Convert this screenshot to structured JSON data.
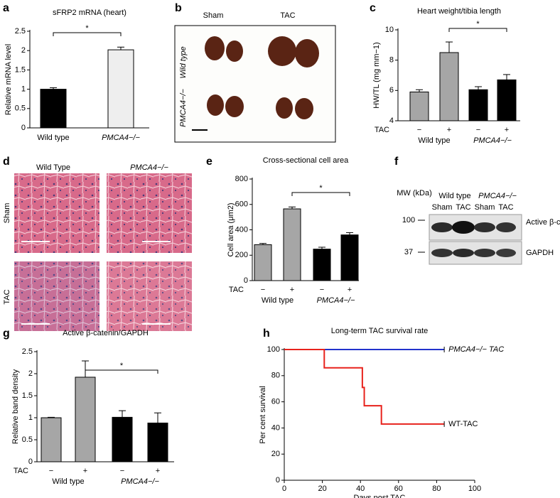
{
  "panel_labels": [
    "a",
    "b",
    "c",
    "d",
    "e",
    "f",
    "g",
    "h"
  ],
  "photo_b": {
    "columns": [
      "Sham",
      "TAC"
    ],
    "rows": [
      "Wild type",
      "PMCA4−/−"
    ]
  },
  "histology_d": {
    "columns": [
      "Wild Type",
      "PMCA4−/−"
    ],
    "rows": [
      "Sham",
      "TAC"
    ]
  },
  "blot_f": {
    "mw_label": "MW (kDa)",
    "groups": [
      "Wild type",
      "PMCA4−/−"
    ],
    "lanes": [
      "Sham",
      "TAC",
      "Sham",
      "TAC"
    ],
    "markers": [
      "100",
      "37"
    ],
    "bands": [
      "Active β-catenin",
      "GAPDH"
    ]
  },
  "chart_data": [
    {
      "type": "bar",
      "title": "sFRP2 mRNA (heart)",
      "y_label": "Relative mRNA level",
      "categories": [
        "Wild type",
        "PMCA4−/−"
      ],
      "values": [
        1.0,
        2.02
      ],
      "errors": [
        0.04,
        0.07
      ],
      "colors": [
        "#000000",
        "#eeeeee"
      ],
      "ylim": [
        0,
        2.5
      ],
      "yticks": [
        0,
        0.5,
        1,
        1.5,
        2,
        2.5
      ],
      "annotation": "*"
    },
    {
      "type": "bar",
      "title": "Heart weight/tibia length",
      "y_label": "HW/TL (mg mm−1)",
      "row_label": "TAC",
      "categories": [
        "−",
        "+",
        "−",
        "+"
      ],
      "groups": [
        "Wild type",
        "PMCA4−/−"
      ],
      "values": [
        5.9,
        8.5,
        6.05,
        6.7
      ],
      "errors": [
        0.15,
        0.7,
        0.2,
        0.35
      ],
      "colors": [
        "#a6a6a6",
        "#a6a6a6",
        "#000000",
        "#000000"
      ],
      "ylim": [
        4,
        10
      ],
      "yticks": [
        4,
        6,
        8,
        10
      ],
      "annotation": "*"
    },
    {
      "type": "bar",
      "title": "Cross-sectional cell area",
      "y_label": "Cell area (μm2)",
      "row_label": "TAC",
      "categories": [
        "−",
        "+",
        "−",
        "+"
      ],
      "groups": [
        "Wild type",
        "PMCA4−/−"
      ],
      "values": [
        283,
        565,
        248,
        360
      ],
      "errors": [
        10,
        15,
        15,
        18
      ],
      "colors": [
        "#a6a6a6",
        "#a6a6a6",
        "#000000",
        "#000000"
      ],
      "ylim": [
        0,
        800
      ],
      "yticks": [
        0,
        200,
        400,
        600,
        800
      ],
      "annotation": "*"
    },
    {
      "type": "bar",
      "title": "Active β-catenin/GAPDH",
      "y_label": "Relative band density",
      "row_label": "TAC",
      "categories": [
        "−",
        "+",
        "−",
        "+"
      ],
      "groups": [
        "Wild type",
        "PMCA4−/−"
      ],
      "values": [
        1.0,
        1.92,
        1.01,
        0.88
      ],
      "errors": [
        0.01,
        0.37,
        0.15,
        0.23
      ],
      "colors": [
        "#a6a6a6",
        "#a6a6a6",
        "#000000",
        "#000000"
      ],
      "ylim": [
        0,
        2.5
      ],
      "yticks": [
        0,
        0.5,
        1,
        1.5,
        2,
        2.5
      ],
      "annotation": "*"
    },
    {
      "type": "line",
      "title": "Long-term TAC survival rate",
      "x_label": "Days post TAC",
      "y_label": "Per cent survival",
      "xlim": [
        0,
        100
      ],
      "xticks": [
        0,
        20,
        40,
        60,
        80,
        100
      ],
      "ylim": [
        0,
        100
      ],
      "yticks": [
        0,
        20,
        40,
        60,
        80,
        100
      ],
      "series": [
        {
          "name": "PMCA4−/− TAC",
          "color": "#2233cc",
          "x": [
            0,
            84
          ],
          "values": [
            100,
            100
          ]
        },
        {
          "name": "WT-TAC",
          "color": "#e8221c",
          "x": [
            0,
            21,
            21,
            41,
            41,
            42,
            42,
            51,
            51,
            84
          ],
          "values": [
            100,
            100,
            86,
            86,
            71,
            71,
            57,
            57,
            43,
            43
          ]
        }
      ]
    }
  ]
}
